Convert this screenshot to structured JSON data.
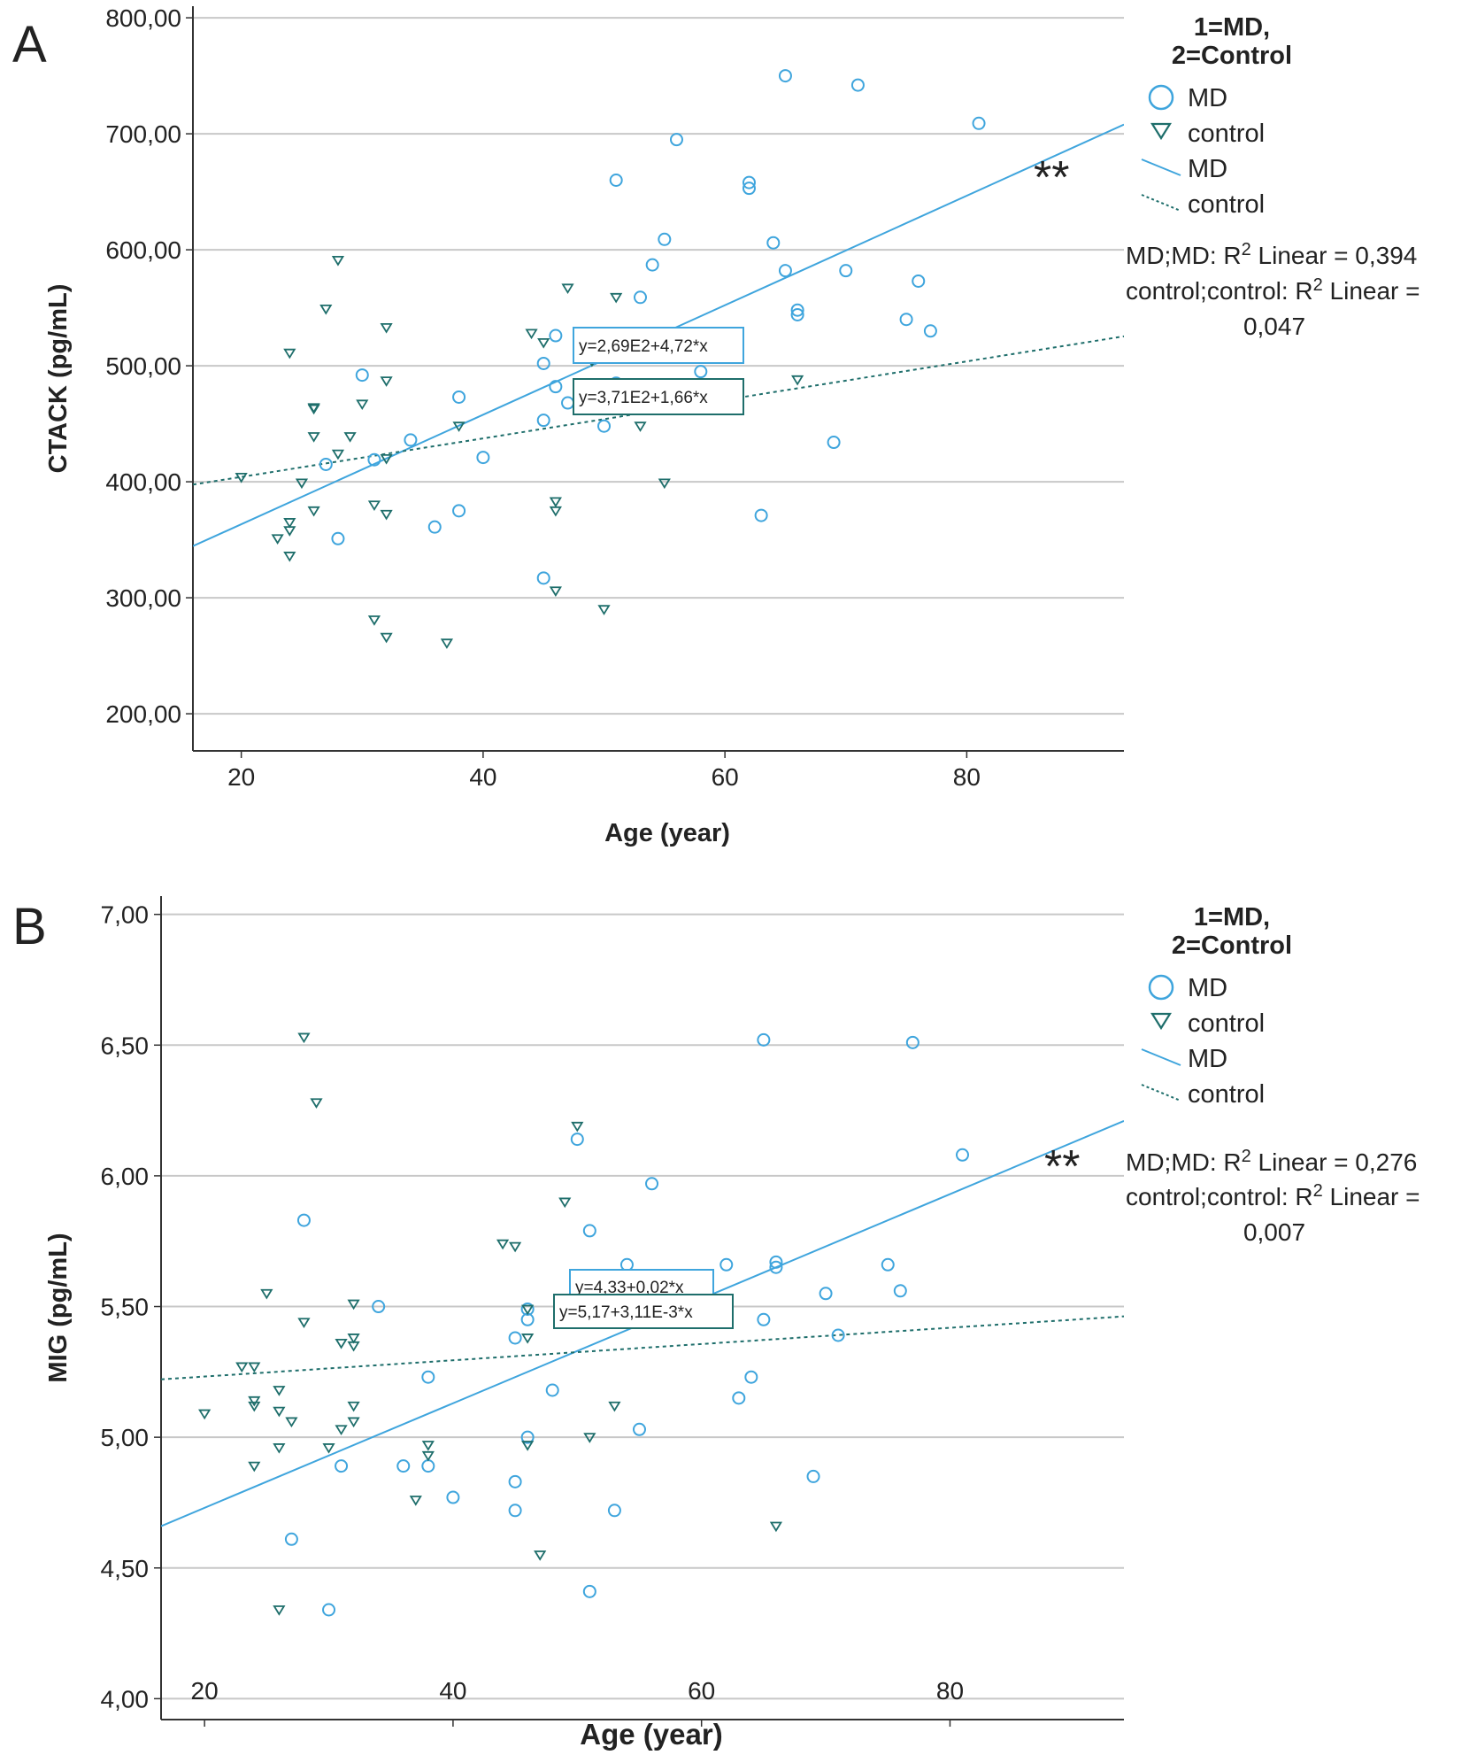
{
  "colors": {
    "md": "#3fa5dd",
    "control": "#1e6e6b",
    "grid": "#c8c8c8",
    "axis": "#333333",
    "text": "#222222"
  },
  "chart_data": [
    {
      "panel_label": "A",
      "type": "scatter",
      "xlabel": "Age (year)",
      "ylabel": "CTACK (pg/mL)",
      "xlim": [
        16,
        93
      ],
      "ylim": [
        168,
        810
      ],
      "xticks": [
        20,
        40,
        60,
        80
      ],
      "xtick_labels": [
        "20",
        "40",
        "60",
        "80"
      ],
      "yticks": [
        200,
        300,
        400,
        500,
        600,
        700,
        800
      ],
      "ytick_labels": [
        "200,00",
        "300,00",
        "400,00",
        "500,00",
        "600,00",
        "700,00",
        "800,00"
      ],
      "grid": true,
      "significance": "**",
      "legend": {
        "title_line1": "1=MD,",
        "title_line2": "2=Control",
        "md_marker_label": "MD",
        "control_marker_label": "control",
        "md_line_label": "MD",
        "control_line_label": "control",
        "r2_md_prefix": "MD;MD: R",
        "r2_md_suffix": " Linear = 0,394",
        "r2_control_prefix": "control;control: R",
        "r2_control_suffix": " Linear =",
        "r2_control_value": "0,047",
        "superscript": "2"
      },
      "series": [
        {
          "name": "MD",
          "marker": "circle",
          "x": [
            27,
            28,
            30,
            31,
            34,
            36,
            38,
            38,
            40,
            45,
            45,
            45,
            46,
            46,
            47,
            48,
            50,
            51,
            51,
            53,
            54,
            55,
            56,
            58,
            62,
            62,
            63,
            64,
            65,
            65,
            66,
            66,
            69,
            70,
            71,
            75,
            76,
            77,
            81
          ],
          "y": [
            415,
            351,
            492,
            419,
            436,
            361,
            473,
            375,
            421,
            317,
            502,
            453,
            526,
            482,
            468,
            472,
            448,
            485,
            660,
            559,
            587,
            609,
            695,
            495,
            658,
            653,
            371,
            606,
            750,
            582,
            548,
            544,
            434,
            582,
            742,
            540,
            573,
            530,
            709
          ],
          "fit": {
            "intercept": 269,
            "slope": 4.72,
            "label": "y=2,69E2+4,72*x"
          }
        },
        {
          "name": "control",
          "marker": "triangle",
          "x": [
            20,
            23,
            24,
            24,
            24,
            24,
            25,
            26,
            26,
            26,
            26,
            27,
            28,
            28,
            29,
            30,
            31,
            31,
            32,
            32,
            32,
            32,
            32,
            37,
            38,
            44,
            45,
            46,
            46,
            46,
            47,
            49,
            50,
            51,
            51,
            53,
            55,
            66
          ],
          "y": [
            404,
            351,
            365,
            358,
            336,
            511,
            399,
            463,
            464,
            439,
            375,
            549,
            424,
            591,
            439,
            467,
            380,
            281,
            420,
            533,
            487,
            372,
            266,
            261,
            448,
            528,
            520,
            383,
            375,
            306,
            567,
            504,
            290,
            472,
            559,
            448,
            399,
            488
          ],
          "fit": {
            "intercept": 371,
            "slope": 1.66,
            "label": "y=3,71E2+1,66*x"
          }
        }
      ]
    },
    {
      "panel_label": "B",
      "type": "scatter",
      "xlabel": "Age (year)",
      "ylabel": "MIG (pg/mL)",
      "xlim": [
        16.5,
        94
      ],
      "ylim": [
        3.92,
        7.07
      ],
      "xticks": [
        20,
        40,
        60,
        80
      ],
      "xtick_labels": [
        "20",
        "40",
        "60",
        "80"
      ],
      "yticks": [
        4.0,
        4.5,
        5.0,
        5.5,
        6.0,
        6.5,
        7.0
      ],
      "ytick_labels": [
        "4,00",
        "4,50",
        "5,00",
        "5,50",
        "6,00",
        "6,50",
        "7,00"
      ],
      "grid": true,
      "significance": "**",
      "legend": {
        "title_line1": "1=MD,",
        "title_line2": "2=Control",
        "md_marker_label": "MD",
        "control_marker_label": "control",
        "md_line_label": "MD",
        "control_line_label": "control",
        "r2_md_prefix": "MD;MD: R",
        "r2_md_suffix": " Linear = 0,276",
        "r2_control_prefix": "control;control: R",
        "r2_control_suffix": " Linear =",
        "r2_control_value": "0,007",
        "superscript": "2"
      },
      "series": [
        {
          "name": "MD",
          "marker": "circle",
          "x": [
            27,
            28,
            30,
            31,
            34,
            36,
            38,
            38,
            40,
            45,
            45,
            45,
            46,
            46,
            46,
            48,
            50,
            50,
            51,
            51,
            53,
            54,
            55,
            56,
            62,
            63,
            64,
            65,
            65,
            66,
            66,
            69,
            70,
            71,
            75,
            76,
            77,
            81
          ],
          "y": [
            4.61,
            5.83,
            4.34,
            4.89,
            5.5,
            4.89,
            4.89,
            5.23,
            4.77,
            4.83,
            4.72,
            5.38,
            5.0,
            5.45,
            5.49,
            5.18,
            6.14,
            5.5,
            5.79,
            4.41,
            4.72,
            5.66,
            5.03,
            5.97,
            5.66,
            5.15,
            5.23,
            5.45,
            6.52,
            5.65,
            5.67,
            4.85,
            5.55,
            5.39,
            5.66,
            5.56,
            6.51,
            6.08
          ],
          "fit": {
            "intercept": 4.33,
            "slope": 0.02,
            "label": "y=4,33+0,02*x"
          }
        },
        {
          "name": "control",
          "marker": "triangle",
          "x": [
            20,
            23,
            24,
            24,
            24,
            24,
            25,
            26,
            26,
            26,
            26,
            27,
            28,
            28,
            29,
            30,
            31,
            31,
            32,
            32,
            32,
            32,
            32,
            37,
            38,
            38,
            44,
            45,
            46,
            46,
            46,
            47,
            49,
            50,
            51,
            53,
            53,
            55,
            66
          ],
          "y": [
            5.09,
            5.27,
            5.27,
            5.14,
            5.12,
            4.89,
            5.55,
            5.18,
            5.1,
            4.96,
            4.34,
            5.06,
            6.53,
            5.44,
            6.28,
            4.96,
            5.36,
            5.03,
            5.51,
            5.38,
            5.35,
            5.12,
            5.06,
            4.76,
            4.97,
            4.93,
            5.74,
            5.73,
            5.49,
            5.38,
            4.97,
            4.55,
            5.9,
            6.19,
            5.0,
            5.12,
            5.61,
            5.6,
            4.66
          ],
          "fit": {
            "intercept": 5.17,
            "slope": 0.00311,
            "label": "y=5,17+3,11E-3*x"
          }
        }
      ]
    }
  ]
}
